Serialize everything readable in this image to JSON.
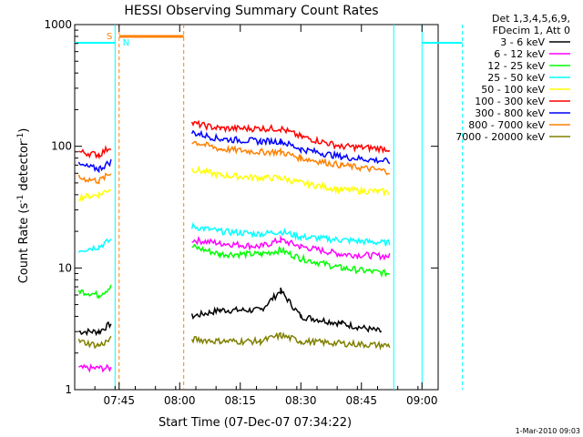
{
  "chart_data": {
    "type": "line",
    "title": "HESSI Observing Summary Count Rates",
    "xlabel": "Start Time (07-Dec-07 07:34:22)",
    "ylabel": "Count Rate (s⁻¹ detector⁻¹)",
    "yscale": "log",
    "ylim": [
      1,
      1000
    ],
    "xlim_minutes": [
      454,
      544
    ],
    "x_ticks": [
      "07:45",
      "08:00",
      "08:15",
      "08:30",
      "08:45",
      "09:00"
    ],
    "y_ticks": [
      "1",
      "10",
      "100",
      "1000"
    ],
    "legend_header": [
      "Det 1,3,4,5,6,9,",
      "FDecim 1, Att 0"
    ],
    "legend_position": "top-right-outside",
    "footer": "1-Mar-2010 09:03",
    "flags": [
      {
        "label": "S",
        "color": "#ff8000"
      },
      {
        "label": "N",
        "color": "#00ffff"
      }
    ],
    "gaps": [
      [
        "07:44",
        "08:03"
      ],
      [
        "08:53",
        "09:11"
      ]
    ],
    "saa_markers": [
      {
        "x": "07:45",
        "style": "dashed",
        "color": "#ff8000"
      },
      {
        "x": "08:01",
        "style": "dashed",
        "color": "#ff8000"
      }
    ],
    "night_markers": [
      {
        "x": "07:44",
        "style": "solid",
        "color": "#00ffff"
      },
      {
        "x": "08:53",
        "style": "solid",
        "color": "#00ffff"
      },
      {
        "x": "09:00",
        "style": "solid",
        "color": "#00ffff"
      },
      {
        "x": "09:10",
        "style": "dashed",
        "color": "#00ffff"
      }
    ],
    "series": [
      {
        "name": "3 - 6 keV",
        "color": "#000000",
        "points": [
          [
            "07:35",
            3
          ],
          [
            "07:40",
            3
          ],
          [
            "07:43",
            3.5
          ],
          [
            "08:03",
            4
          ],
          [
            "08:10",
            4.5
          ],
          [
            "08:20",
            4.5
          ],
          [
            "08:25",
            6.5
          ],
          [
            "08:30",
            4
          ],
          [
            "08:40",
            3.5
          ],
          [
            "08:50",
            3
          ]
        ]
      },
      {
        "name": "6 - 12 keV",
        "color": "#ff00ff",
        "points": [
          [
            "07:35",
            1.5
          ],
          [
            "07:40",
            1.5
          ],
          [
            "07:43",
            1.5
          ],
          [
            "08:03",
            17
          ],
          [
            "08:10",
            16
          ],
          [
            "08:20",
            15
          ],
          [
            "08:25",
            17
          ],
          [
            "08:30",
            15
          ],
          [
            "08:40",
            13
          ],
          [
            "08:52",
            12.5
          ]
        ]
      },
      {
        "name": "12 - 25 keV",
        "color": "#00ff00",
        "points": [
          [
            "07:35",
            6.5
          ],
          [
            "07:40",
            6
          ],
          [
            "07:43",
            7
          ],
          [
            "08:03",
            15
          ],
          [
            "08:10",
            13
          ],
          [
            "08:20",
            13
          ],
          [
            "08:25",
            14
          ],
          [
            "08:30",
            12
          ],
          [
            "08:40",
            10
          ],
          [
            "08:52",
            9
          ]
        ]
      },
      {
        "name": "25 - 50 keV",
        "color": "#00ffff",
        "points": [
          [
            "07:35",
            14
          ],
          [
            "07:40",
            15
          ],
          [
            "07:43",
            17
          ],
          [
            "08:03",
            22
          ],
          [
            "08:10",
            20
          ],
          [
            "08:20",
            19
          ],
          [
            "08:25",
            20
          ],
          [
            "08:30",
            18
          ],
          [
            "08:40",
            17
          ],
          [
            "08:52",
            16
          ]
        ]
      },
      {
        "name": "50 - 100 keV",
        "color": "#ffff00",
        "points": [
          [
            "07:35",
            38
          ],
          [
            "07:40",
            40
          ],
          [
            "07:43",
            45
          ],
          [
            "08:03",
            65
          ],
          [
            "08:10",
            58
          ],
          [
            "08:20",
            55
          ],
          [
            "08:25",
            55
          ],
          [
            "08:30",
            50
          ],
          [
            "08:40",
            44
          ],
          [
            "08:52",
            42
          ]
        ]
      },
      {
        "name": "100 - 300 keV",
        "color": "#ff0000",
        "points": [
          [
            "07:35",
            90
          ],
          [
            "07:40",
            85
          ],
          [
            "07:43",
            100
          ],
          [
            "08:03",
            155
          ],
          [
            "08:10",
            140
          ],
          [
            "08:20",
            140
          ],
          [
            "08:25",
            140
          ],
          [
            "08:30",
            120
          ],
          [
            "08:40",
            100
          ],
          [
            "08:52",
            95
          ]
        ]
      },
      {
        "name": "300 - 800 keV",
        "color": "#0000ff",
        "points": [
          [
            "07:35",
            70
          ],
          [
            "07:40",
            65
          ],
          [
            "07:43",
            75
          ],
          [
            "08:03",
            130
          ],
          [
            "08:10",
            115
          ],
          [
            "08:20",
            110
          ],
          [
            "08:25",
            110
          ],
          [
            "08:30",
            95
          ],
          [
            "08:40",
            82
          ],
          [
            "08:52",
            75
          ]
        ]
      },
      {
        "name": "800 - 7000 keV",
        "color": "#ff8000",
        "points": [
          [
            "07:35",
            55
          ],
          [
            "07:40",
            52
          ],
          [
            "07:43",
            60
          ],
          [
            "08:03",
            110
          ],
          [
            "08:10",
            95
          ],
          [
            "08:20",
            90
          ],
          [
            "08:25",
            90
          ],
          [
            "08:30",
            80
          ],
          [
            "08:40",
            70
          ],
          [
            "08:52",
            62
          ]
        ]
      },
      {
        "name": "7000 - 20000 keV",
        "color": "#808000",
        "points": [
          [
            "07:35",
            2.5
          ],
          [
            "07:40",
            2.3
          ],
          [
            "07:43",
            2.6
          ],
          [
            "08:03",
            2.6
          ],
          [
            "08:10",
            2.5
          ],
          [
            "08:20",
            2.5
          ],
          [
            "08:25",
            2.8
          ],
          [
            "08:30",
            2.5
          ],
          [
            "08:40",
            2.4
          ],
          [
            "08:52",
            2.3
          ]
        ]
      }
    ]
  }
}
